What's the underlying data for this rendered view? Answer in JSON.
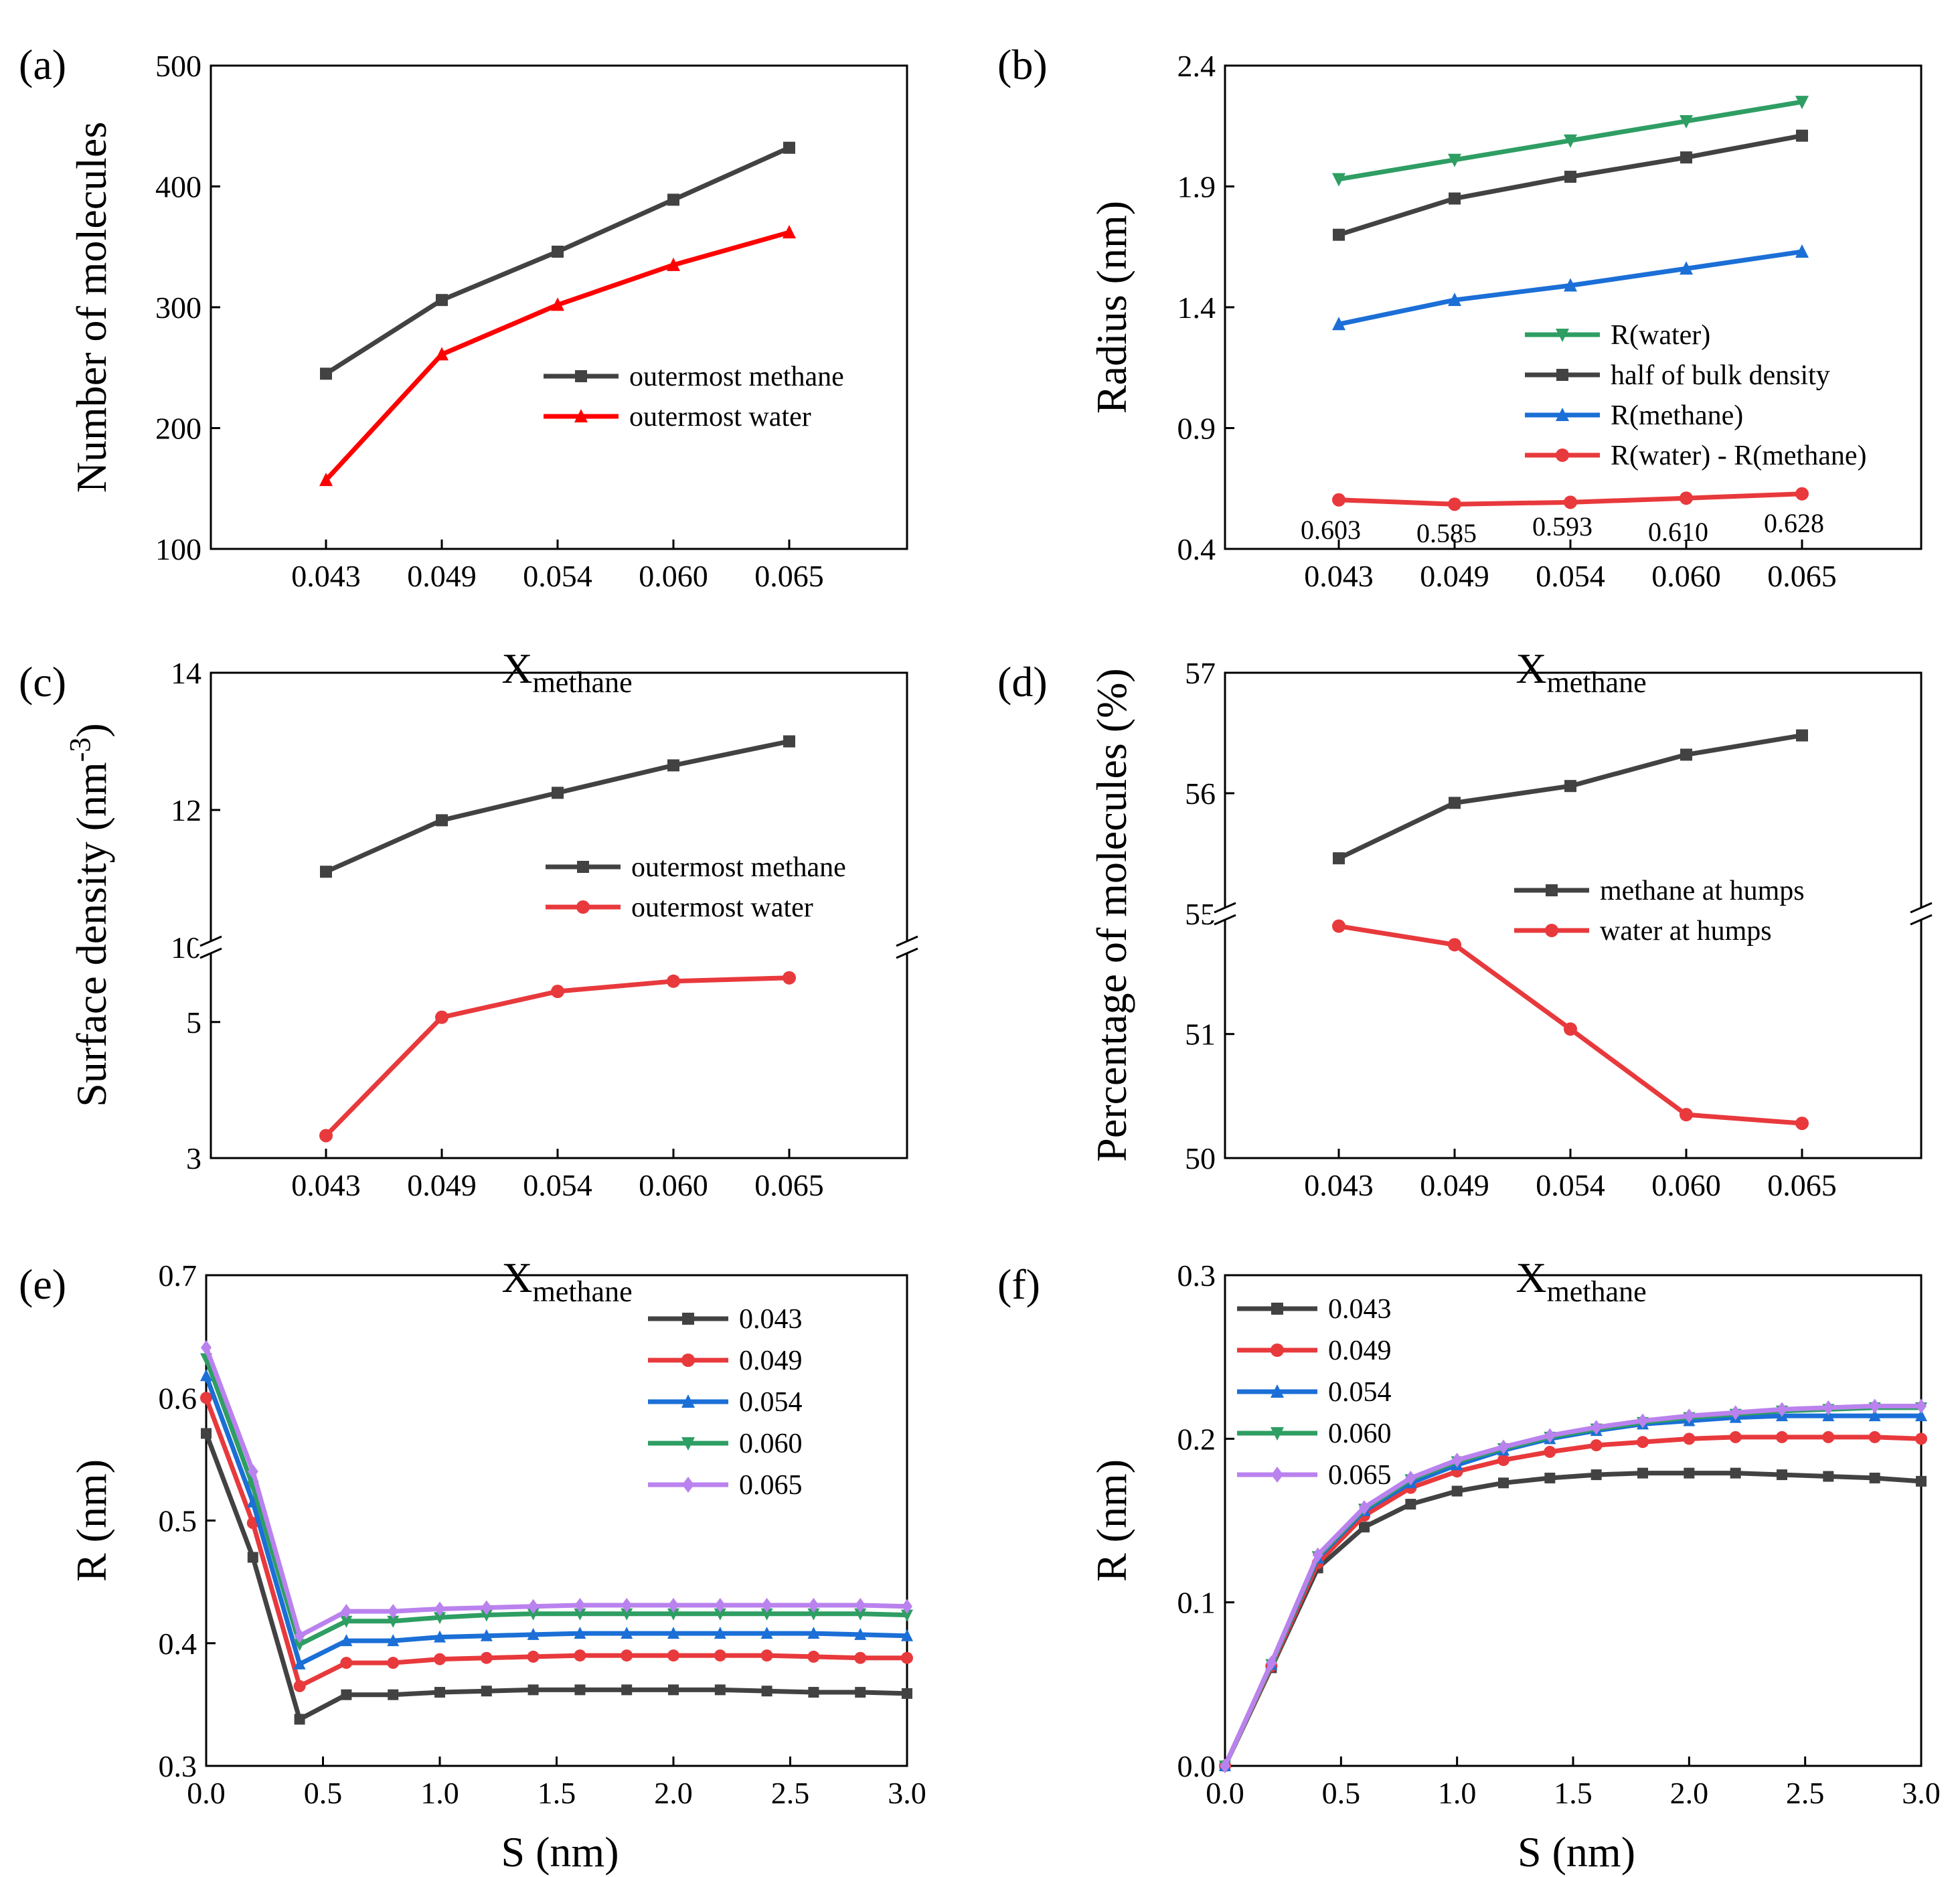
{
  "colors": {
    "black": "#424242",
    "red_a": "#ff0000",
    "red": "#e8393c",
    "green": "#2e9e63",
    "blue": "#1b6fd6",
    "purple": "#ba82ee"
  },
  "chart_data": [
    {
      "type": "line",
      "panel": "(a)",
      "xlabel_main": "X",
      "xlabel_sub": "methane",
      "ylabel": "Number of molecules",
      "categories": [
        "0.043",
        "0.049",
        "0.054",
        "0.060",
        "0.065"
      ],
      "ylim": [
        100,
        500
      ],
      "yticks": [
        "100",
        "200",
        "300",
        "400",
        "500"
      ],
      "legend": "center-right",
      "series": [
        {
          "name": "outermost methane",
          "marker": "square",
          "color": "#424242",
          "values": [
            245,
            306,
            346,
            389,
            432
          ]
        },
        {
          "name": "outermost water",
          "marker": "triangle-up",
          "color": "#ff0000",
          "values": [
            157,
            261,
            302,
            335,
            362
          ]
        }
      ]
    },
    {
      "type": "line",
      "panel": "(b)",
      "xlabel_main": "X",
      "xlabel_sub": "methane",
      "ylabel": "Radius (nm)",
      "categories": [
        "0.043",
        "0.049",
        "0.054",
        "0.060",
        "0.065"
      ],
      "ylim": [
        0.4,
        2.4
      ],
      "yticks": [
        "0.4",
        "0.9",
        "1.4",
        "1.9",
        "2.4"
      ],
      "legend": "lower-right",
      "series": [
        {
          "name": "R(water)",
          "marker": "triangle-down",
          "color": "#2e9e63",
          "values": [
            1.93,
            2.01,
            2.09,
            2.17,
            2.25
          ]
        },
        {
          "name": "half of bulk density",
          "marker": "square",
          "color": "#424242",
          "values": [
            1.7,
            1.85,
            1.94,
            2.02,
            2.11
          ]
        },
        {
          "name": "R(methane)",
          "marker": "triangle-up",
          "color": "#1b6fd6",
          "values": [
            1.33,
            1.43,
            1.49,
            1.56,
            1.63
          ]
        },
        {
          "name": "R(water) - R(methane)",
          "marker": "circle",
          "color": "#e8393c",
          "values": [
            0.603,
            0.585,
            0.593,
            0.61,
            0.628
          ]
        }
      ],
      "annotations": [
        "0.603",
        "0.585",
        "0.593",
        "0.610",
        "0.628"
      ]
    },
    {
      "type": "line",
      "panel": "(c)",
      "xlabel_main": "X",
      "xlabel_sub": "methane",
      "ylabel": "Surface density (nm",
      "ylabel_sup": "-3",
      "ylabel_end": ")",
      "categories": [
        "0.043",
        "0.049",
        "0.054",
        "0.060",
        "0.065"
      ],
      "broken_axis": true,
      "upper_ylim": [
        10,
        14
      ],
      "upper_yticks": [
        "10",
        "12",
        "14"
      ],
      "lower_ylim": [
        3,
        6.1
      ],
      "lower_yticks": [
        "3",
        "5"
      ],
      "legend": "center-right",
      "series": [
        {
          "name": "outermost methane",
          "marker": "square",
          "color": "#424242",
          "segment": "upper",
          "values": [
            11.1,
            11.85,
            12.25,
            12.65,
            13.0
          ]
        },
        {
          "name": "outermost water",
          "marker": "circle",
          "color": "#e8393c",
          "segment": "lower",
          "values": [
            3.33,
            5.07,
            5.45,
            5.6,
            5.65
          ]
        }
      ]
    },
    {
      "type": "line",
      "panel": "(d)",
      "xlabel_main": "X",
      "xlabel_sub": "methane",
      "ylabel": "Percentage of molecules (%)",
      "categories": [
        "0.043",
        "0.049",
        "0.054",
        "0.060",
        "0.065"
      ],
      "broken_axis": true,
      "upper_ylim": [
        55,
        57
      ],
      "upper_yticks": [
        "55",
        "56",
        "57"
      ],
      "lower_ylim": [
        50,
        51.97
      ],
      "lower_yticks": [
        "50",
        "51"
      ],
      "legend": "center-right",
      "series": [
        {
          "name": "methane at humps",
          "marker": "square",
          "color": "#424242",
          "segment": "upper",
          "values": [
            55.46,
            55.92,
            56.06,
            56.32,
            56.48
          ]
        },
        {
          "name": "water at humps",
          "marker": "circle",
          "color": "#e8393c",
          "segment": "lower",
          "values": [
            51.87,
            51.72,
            51.04,
            50.35,
            50.28
          ]
        }
      ]
    },
    {
      "type": "line",
      "panel": "(e)",
      "xlabel": "S (nm)",
      "ylabel": "R (nm)",
      "xlim": [
        0,
        3
      ],
      "xticks": [
        "0.0",
        "0.5",
        "1.0",
        "1.5",
        "2.0",
        "2.5",
        "3.0"
      ],
      "ylim": [
        0.3,
        0.7
      ],
      "yticks": [
        "0.3",
        "0.4",
        "0.5",
        "0.6",
        "0.7"
      ],
      "legend": "top-right",
      "x": [
        0,
        0.2,
        0.4,
        0.6,
        0.8,
        1.0,
        1.2,
        1.4,
        1.6,
        1.8,
        2.0,
        2.2,
        2.4,
        2.6,
        2.8,
        3.0
      ],
      "series": [
        {
          "name": "0.043",
          "marker": "square",
          "color": "#424242",
          "values": [
            0.571,
            0.47,
            0.338,
            0.358,
            0.358,
            0.36,
            0.361,
            0.362,
            0.362,
            0.362,
            0.362,
            0.362,
            0.361,
            0.36,
            0.36,
            0.359
          ]
        },
        {
          "name": "0.049",
          "marker": "circle",
          "color": "#e8393c",
          "values": [
            0.6,
            0.498,
            0.365,
            0.384,
            0.384,
            0.387,
            0.388,
            0.389,
            0.39,
            0.39,
            0.39,
            0.39,
            0.39,
            0.389,
            0.388,
            0.388
          ]
        },
        {
          "name": "0.054",
          "marker": "triangle-up",
          "color": "#1b6fd6",
          "values": [
            0.618,
            0.515,
            0.383,
            0.402,
            0.402,
            0.405,
            0.406,
            0.407,
            0.408,
            0.408,
            0.408,
            0.408,
            0.408,
            0.408,
            0.407,
            0.406
          ]
        },
        {
          "name": "0.060",
          "marker": "triangle-down",
          "color": "#2e9e63",
          "values": [
            0.632,
            0.528,
            0.399,
            0.418,
            0.418,
            0.421,
            0.423,
            0.424,
            0.424,
            0.424,
            0.424,
            0.424,
            0.424,
            0.424,
            0.424,
            0.423
          ]
        },
        {
          "name": "0.065",
          "marker": "diamond",
          "color": "#ba82ee",
          "values": [
            0.641,
            0.54,
            0.406,
            0.426,
            0.426,
            0.428,
            0.429,
            0.43,
            0.431,
            0.431,
            0.431,
            0.431,
            0.431,
            0.431,
            0.431,
            0.43
          ]
        }
      ]
    },
    {
      "type": "line",
      "panel": "(f)",
      "xlabel": "S (nm)",
      "ylabel": "R (nm)",
      "xlim": [
        0,
        3
      ],
      "xticks": [
        "0.0",
        "0.5",
        "1.0",
        "1.5",
        "2.0",
        "2.5",
        "3.0"
      ],
      "ylim": [
        0,
        0.3
      ],
      "yticks": [
        "0.0",
        "0.1",
        "0.2",
        "0.3"
      ],
      "legend": "top-left",
      "x": [
        0,
        0.2,
        0.4,
        0.6,
        0.8,
        1.0,
        1.2,
        1.4,
        1.6,
        1.8,
        2.0,
        2.2,
        2.4,
        2.6,
        2.8,
        3.0
      ],
      "series": [
        {
          "name": "0.043",
          "marker": "square",
          "color": "#424242",
          "values": [
            0.0,
            0.06,
            0.121,
            0.146,
            0.16,
            0.168,
            0.173,
            0.176,
            0.178,
            0.179,
            0.179,
            0.179,
            0.178,
            0.177,
            0.176,
            0.174
          ]
        },
        {
          "name": "0.049",
          "marker": "circle",
          "color": "#e8393c",
          "values": [
            0.0,
            0.061,
            0.124,
            0.153,
            0.17,
            0.18,
            0.187,
            0.192,
            0.196,
            0.198,
            0.2,
            0.201,
            0.201,
            0.201,
            0.201,
            0.2
          ]
        },
        {
          "name": "0.054",
          "marker": "triangle-up",
          "color": "#1b6fd6",
          "values": [
            0.0,
            0.062,
            0.127,
            0.156,
            0.173,
            0.184,
            0.193,
            0.2,
            0.205,
            0.209,
            0.211,
            0.213,
            0.214,
            0.214,
            0.214,
            0.214
          ]
        },
        {
          "name": "0.060",
          "marker": "triangle-down",
          "color": "#2e9e63",
          "values": [
            0.0,
            0.062,
            0.128,
            0.157,
            0.175,
            0.186,
            0.194,
            0.201,
            0.206,
            0.21,
            0.213,
            0.215,
            0.217,
            0.218,
            0.219,
            0.219
          ]
        },
        {
          "name": "0.065",
          "marker": "diamond",
          "color": "#ba82ee",
          "values": [
            0.0,
            0.063,
            0.129,
            0.158,
            0.176,
            0.187,
            0.195,
            0.202,
            0.207,
            0.211,
            0.214,
            0.216,
            0.218,
            0.219,
            0.22,
            0.22
          ]
        }
      ]
    }
  ]
}
